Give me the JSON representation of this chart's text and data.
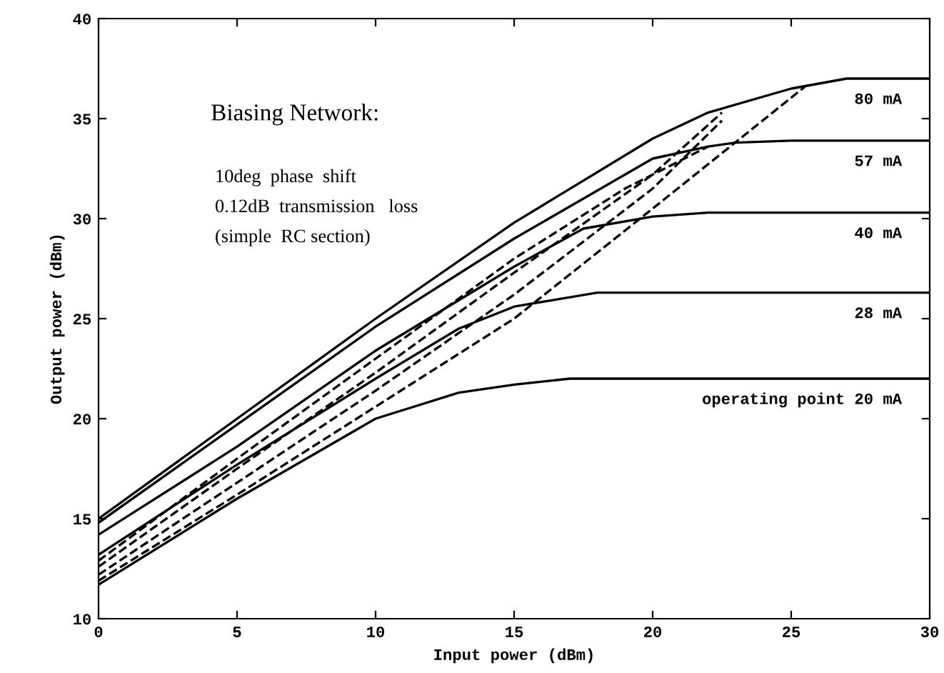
{
  "chart_data": {
    "type": "line",
    "xlabel": "Input power (dBm)",
    "ylabel": "Output power (dBm)",
    "xlim": [
      0,
      30
    ],
    "ylim": [
      10,
      40
    ],
    "xticks": [
      0,
      5,
      10,
      15,
      20,
      25,
      30
    ],
    "yticks": [
      10,
      15,
      20,
      25,
      30,
      35,
      40
    ],
    "grid": false,
    "marker": "none",
    "annotations": [
      "Biasing Network:",
      "10deg  phase  shift",
      "0.12dB  transmission   loss",
      "(simple  RC section)"
    ],
    "series": [
      {
        "name": "80 mA",
        "color": "#000000",
        "line_style": "solid",
        "x": [
          0,
          5,
          10,
          15,
          20,
          22,
          25,
          27,
          30
        ],
        "values": [
          15.0,
          20.0,
          25.0,
          29.8,
          34.0,
          35.3,
          36.5,
          37.0,
          37.0
        ]
      },
      {
        "name": "57 mA",
        "color": "#000000",
        "line_style": "solid",
        "x": [
          0,
          5,
          10,
          15,
          20,
          22,
          23,
          25,
          30
        ],
        "values": [
          14.8,
          19.7,
          24.6,
          29.0,
          33.0,
          33.6,
          33.8,
          33.9,
          33.9
        ]
      },
      {
        "name": "40 mA",
        "color": "#000000",
        "line_style": "solid",
        "x": [
          0,
          5,
          10,
          15,
          17.5,
          20,
          22,
          30
        ],
        "values": [
          14.2,
          18.6,
          23.4,
          27.6,
          29.5,
          30.1,
          30.3,
          30.3
        ]
      },
      {
        "name": "28 mA",
        "color": "#000000",
        "line_style": "solid",
        "x": [
          0,
          5,
          10,
          13,
          15,
          18,
          30
        ],
        "values": [
          13.2,
          17.7,
          22.0,
          24.5,
          25.6,
          26.3,
          26.3
        ]
      },
      {
        "name": "operating point 20 mA",
        "color": "#000000",
        "line_style": "solid",
        "x": [
          0,
          5,
          10,
          13,
          15,
          17,
          30
        ],
        "values": [
          11.7,
          16.0,
          20.0,
          21.3,
          21.7,
          22.0,
          22.0
        ]
      },
      {
        "color": "#000000",
        "line_style": "dashed",
        "x": [
          0,
          5,
          10,
          15,
          20,
          25.5
        ],
        "values": [
          11.9,
          16.2,
          20.6,
          25.0,
          30.5,
          36.6
        ]
      },
      {
        "color": "#000000",
        "line_style": "dashed",
        "x": [
          0,
          5,
          10,
          15,
          20,
          22.5
        ],
        "values": [
          12.2,
          16.8,
          21.4,
          26.2,
          31.5,
          34.9
        ]
      },
      {
        "color": "#000000",
        "line_style": "dashed",
        "x": [
          0,
          5,
          10,
          15,
          20,
          22.5
        ],
        "values": [
          12.6,
          17.5,
          22.3,
          27.3,
          32.2,
          35.3
        ]
      },
      {
        "color": "#000000",
        "line_style": "dashed",
        "x": [
          0,
          5,
          10,
          15,
          19,
          22
        ],
        "values": [
          12.9,
          18.0,
          23.0,
          28.0,
          31.5,
          33.6
        ]
      }
    ]
  }
}
